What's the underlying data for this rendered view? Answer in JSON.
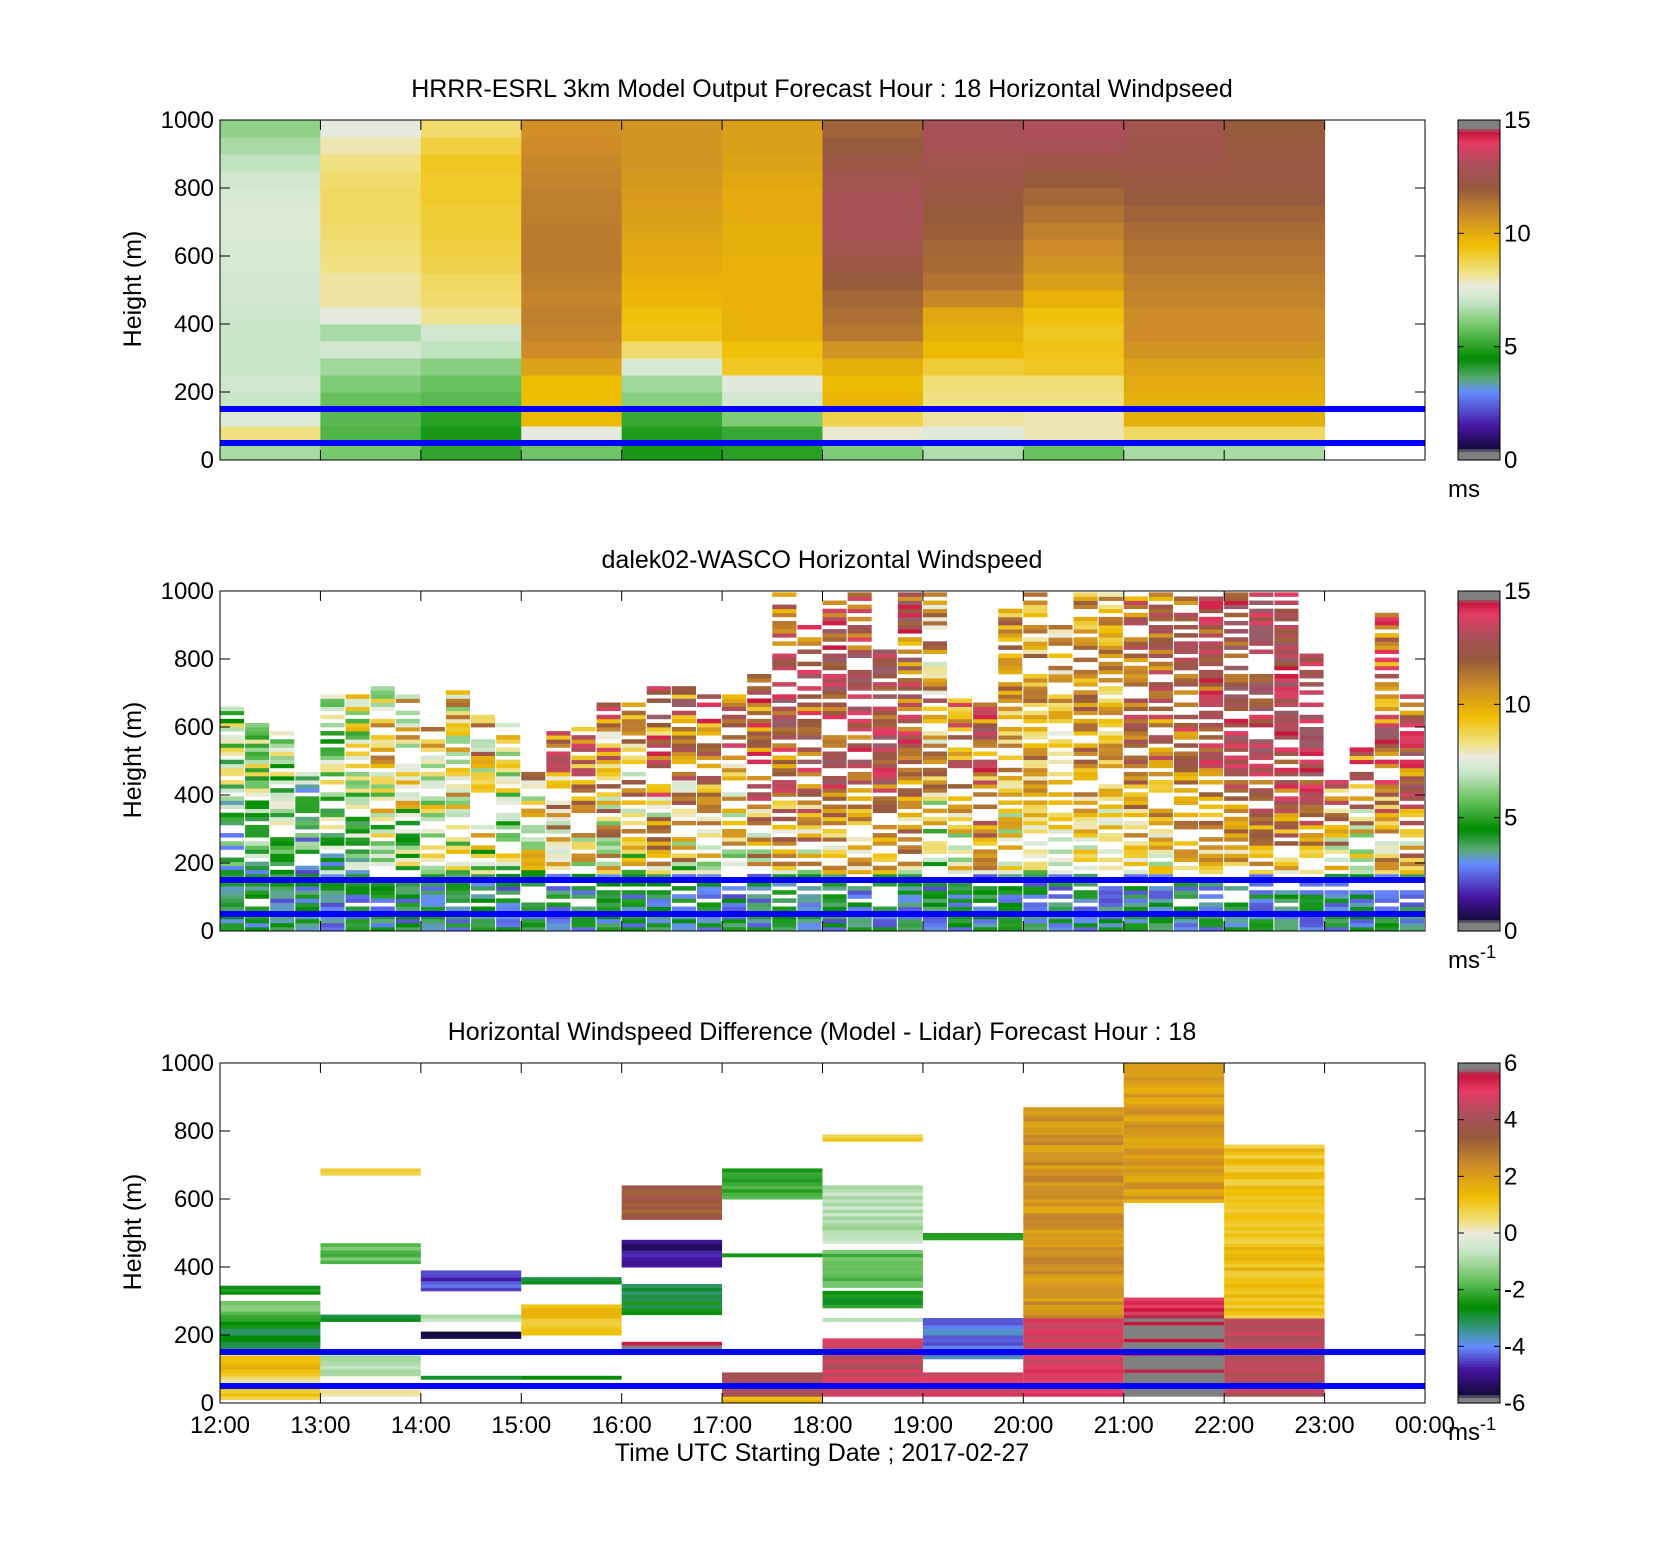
{
  "chart_data": [
    {
      "type": "heatmap",
      "title": "HRRR-ESRL 3km Model Output   Forecast Hour : 18 Horizontal Windpseed",
      "ylabel": "Height (m)",
      "yticks": [
        "0",
        "200",
        "400",
        "600",
        "800",
        "1000"
      ],
      "ylim": [
        0,
        1000
      ],
      "xlim": [
        12,
        24
      ],
      "colorbar": {
        "min": 0,
        "max": 15,
        "ticks": [
          "0",
          "5",
          "10",
          "15"
        ],
        "unit": "ms",
        "unit_sup": ""
      },
      "reference_lines_m": [
        50,
        150
      ],
      "reference_line_color": "#0000ff",
      "time_start_hours": [
        12,
        13,
        14,
        15,
        16,
        17,
        18,
        19,
        20,
        21,
        22
      ],
      "heights_m": [
        25,
        75,
        125,
        175,
        225,
        275,
        325,
        375,
        425,
        475,
        525,
        575,
        625,
        675,
        725,
        775,
        825,
        875,
        925,
        975
      ],
      "values": [
        [
          6.6,
          6.0,
          5.1,
          5.9,
          4.8,
          5.0,
          6.1,
          6.7,
          5.8,
          6.6,
          6.6
        ],
        [
          8.3,
          5.5,
          4.8,
          7.6,
          4.9,
          5.2,
          7.8,
          7.5,
          8.0,
          8.6,
          8.6
        ],
        [
          7.4,
          5.6,
          5.0,
          9.6,
          5.2,
          6.1,
          8.8,
          8.1,
          8.0,
          9.9,
          9.9
        ],
        [
          7.0,
          5.8,
          5.6,
          9.5,
          6.2,
          7.2,
          9.7,
          8.3,
          8.3,
          9.9,
          9.9
        ],
        [
          7.2,
          6.1,
          5.8,
          9.5,
          6.5,
          7.5,
          9.6,
          8.4,
          8.4,
          10.0,
          10.0
        ],
        [
          7.0,
          6.5,
          6.2,
          10.2,
          7.3,
          9.2,
          9.9,
          9.0,
          9.2,
          10.2,
          10.2
        ],
        [
          7.0,
          7.2,
          6.9,
          10.8,
          8.5,
          9.4,
          10.6,
          9.6,
          9.3,
          10.6,
          10.6
        ],
        [
          7.0,
          6.6,
          7.2,
          11.0,
          9.3,
          9.8,
          11.3,
          9.9,
          9.2,
          10.8,
          10.8
        ],
        [
          7.1,
          7.6,
          8.2,
          11.1,
          9.4,
          9.8,
          11.5,
          10.1,
          9.4,
          10.8,
          10.8
        ],
        [
          7.2,
          8.1,
          8.5,
          11.0,
          9.7,
          9.8,
          11.7,
          10.9,
          9.8,
          11.0,
          11.0
        ],
        [
          7.2,
          8.1,
          8.6,
          11.1,
          9.8,
          9.8,
          12.0,
          11.4,
          10.3,
          11.1,
          11.1
        ],
        [
          7.3,
          8.3,
          8.8,
          11.2,
          10.0,
          9.8,
          12.3,
          11.6,
          10.6,
          11.3,
          11.3
        ],
        [
          7.3,
          8.4,
          8.9,
          11.2,
          10.1,
          9.9,
          12.6,
          11.7,
          10.8,
          11.4,
          11.4
        ],
        [
          7.4,
          8.5,
          9.0,
          11.2,
          10.2,
          9.9,
          12.8,
          11.9,
          11.1,
          11.6,
          11.6
        ],
        [
          7.4,
          8.6,
          9.0,
          11.1,
          10.3,
          10.0,
          12.9,
          12.0,
          11.4,
          11.8,
          11.8
        ],
        [
          7.3,
          8.6,
          9.1,
          11.1,
          10.4,
          10.0,
          12.8,
          12.2,
          11.7,
          12.0,
          12.0
        ],
        [
          7.2,
          8.5,
          9.1,
          11.0,
          10.5,
          10.1,
          12.6,
          12.4,
          12.0,
          12.2,
          12.2
        ],
        [
          6.9,
          8.3,
          9.2,
          10.9,
          10.6,
          10.2,
          12.3,
          12.6,
          12.4,
          12.4,
          12.2
        ],
        [
          6.6,
          8.0,
          8.9,
          10.8,
          10.6,
          10.3,
          12.0,
          12.8,
          12.8,
          12.5,
          12.1
        ],
        [
          6.3,
          7.6,
          8.5,
          10.7,
          10.6,
          10.3,
          11.8,
          12.9,
          13.1,
          12.6,
          12.0
        ]
      ]
    },
    {
      "type": "heatmap",
      "title": "dalek02-WASCO  Horizontal Windspeed",
      "ylabel": "Height (m)",
      "yticks": [
        "0",
        "200",
        "400",
        "600",
        "800",
        "1000"
      ],
      "ylim": [
        0,
        1000
      ],
      "xlim": [
        12,
        24
      ],
      "colorbar": {
        "min": 0,
        "max": 15,
        "ticks": [
          "0",
          "5",
          "10",
          "15"
        ],
        "unit": "ms",
        "unit_sup": "-1"
      },
      "reference_lines_m": [
        50,
        150
      ],
      "reference_line_color": "#0000ff",
      "segments": [
        {
          "t": 12.0,
          "top": 660,
          "mean": 6.5,
          "spread": 2.5
        },
        {
          "t": 12.25,
          "top": 620,
          "mean": 7.0,
          "spread": 2.5
        },
        {
          "t": 12.5,
          "top": 600,
          "mean": 7.0,
          "spread": 2.5
        },
        {
          "t": 12.75,
          "top": 480,
          "mean": 6.0,
          "spread": 2.5
        },
        {
          "t": 13.0,
          "top": 700,
          "mean": 7.0,
          "spread": 2.5
        },
        {
          "t": 13.25,
          "top": 700,
          "mean": 7.5,
          "spread": 2.5
        },
        {
          "t": 13.5,
          "top": 720,
          "mean": 8.5,
          "spread": 3.0
        },
        {
          "t": 13.75,
          "top": 700,
          "mean": 8.5,
          "spread": 3.0
        },
        {
          "t": 14.0,
          "top": 600,
          "mean": 9.0,
          "spread": 3.0
        },
        {
          "t": 14.25,
          "top": 720,
          "mean": 9.0,
          "spread": 3.0
        },
        {
          "t": 14.5,
          "top": 660,
          "mean": 9.5,
          "spread": 3.0
        },
        {
          "t": 14.75,
          "top": 620,
          "mean": 9.0,
          "spread": 3.0
        },
        {
          "t": 15.0,
          "top": 500,
          "mean": 10.0,
          "spread": 3.0
        },
        {
          "t": 15.25,
          "top": 600,
          "mean": 11.0,
          "spread": 3.0
        },
        {
          "t": 15.5,
          "top": 620,
          "mean": 11.5,
          "spread": 3.0
        },
        {
          "t": 15.75,
          "top": 680,
          "mean": 11.0,
          "spread": 3.5
        },
        {
          "t": 16.0,
          "top": 700,
          "mean": 10.5,
          "spread": 3.5
        },
        {
          "t": 16.25,
          "top": 720,
          "mean": 11.5,
          "spread": 3.5
        },
        {
          "t": 16.5,
          "top": 720,
          "mean": 11.5,
          "spread": 3.5
        },
        {
          "t": 16.75,
          "top": 700,
          "mean": 12.0,
          "spread": 3.0
        },
        {
          "t": 17.0,
          "top": 700,
          "mean": 11.0,
          "spread": 3.0
        },
        {
          "t": 17.25,
          "top": 760,
          "mean": 12.0,
          "spread": 3.0
        },
        {
          "t": 17.5,
          "top": 1000,
          "mean": 12.5,
          "spread": 3.0
        },
        {
          "t": 17.75,
          "top": 900,
          "mean": 12.5,
          "spread": 3.0
        },
        {
          "t": 18.0,
          "top": 980,
          "mean": 13.0,
          "spread": 2.5
        },
        {
          "t": 18.25,
          "top": 1000,
          "mean": 13.0,
          "spread": 2.5
        },
        {
          "t": 18.5,
          "top": 830,
          "mean": 13.5,
          "spread": 2.5
        },
        {
          "t": 18.75,
          "top": 1000,
          "mean": 12.0,
          "spread": 3.0
        },
        {
          "t": 19.0,
          "top": 1000,
          "mean": 10.0,
          "spread": 3.0
        },
        {
          "t": 19.25,
          "top": 700,
          "mean": 11.0,
          "spread": 3.0
        },
        {
          "t": 19.5,
          "top": 680,
          "mean": 12.0,
          "spread": 3.0
        },
        {
          "t": 19.75,
          "top": 1000,
          "mean": 10.5,
          "spread": 2.5
        },
        {
          "t": 20.0,
          "top": 1000,
          "mean": 10.0,
          "spread": 2.0
        },
        {
          "t": 20.25,
          "top": 900,
          "mean": 9.5,
          "spread": 2.0
        },
        {
          "t": 20.5,
          "top": 1000,
          "mean": 10.5,
          "spread": 2.0
        },
        {
          "t": 20.75,
          "top": 1000,
          "mean": 10.0,
          "spread": 2.0
        },
        {
          "t": 21.0,
          "top": 1000,
          "mean": 11.5,
          "spread": 2.0
        },
        {
          "t": 21.25,
          "top": 1000,
          "mean": 11.5,
          "spread": 2.0
        },
        {
          "t": 21.5,
          "top": 1000,
          "mean": 12.0,
          "spread": 2.0
        },
        {
          "t": 21.75,
          "top": 1000,
          "mean": 12.5,
          "spread": 2.0
        },
        {
          "t": 22.0,
          "top": 1000,
          "mean": 13.0,
          "spread": 2.0
        },
        {
          "t": 22.25,
          "top": 1000,
          "mean": 13.5,
          "spread": 2.0
        },
        {
          "t": 22.5,
          "top": 1000,
          "mean": 13.5,
          "spread": 2.0
        },
        {
          "t": 22.75,
          "top": 820,
          "mean": 14.0,
          "spread": 2.0
        },
        {
          "t": 23.0,
          "top": 450,
          "mean": 12.0,
          "spread": 3.0
        },
        {
          "t": 23.25,
          "top": 540,
          "mean": 11.0,
          "spread": 3.5
        },
        {
          "t": 23.5,
          "top": 940,
          "mean": 12.0,
          "spread": 3.0
        },
        {
          "t": 23.75,
          "top": 700,
          "mean": 12.5,
          "spread": 3.0
        }
      ]
    },
    {
      "type": "heatmap",
      "title": "Horizontal Windspeed Difference (Model - Lidar) Forecast Hour : 18",
      "ylabel": "Height (m)",
      "xlabel": "Time UTC  Starting Date ; 2017-02-27",
      "yticks": [
        "0",
        "200",
        "400",
        "600",
        "800",
        "1000"
      ],
      "ylim": [
        0,
        1000
      ],
      "xlim": [
        12,
        24
      ],
      "xticks": [
        "12:00",
        "13:00",
        "14:00",
        "15:00",
        "16:00",
        "17:00",
        "18:00",
        "19:00",
        "20:00",
        "21:00",
        "22:00",
        "23:00",
        "00:00"
      ],
      "colorbar": {
        "min": -6,
        "max": 6,
        "ticks": [
          "-6",
          "-4",
          "-2",
          "0",
          "2",
          "4",
          "6"
        ],
        "unit": "ms",
        "unit_sup": "-1"
      },
      "reference_lines_m": [
        50,
        150
      ],
      "reference_line_color": "#0000ff",
      "bands": [
        {
          "t": 12,
          "bot": 10,
          "top": 60,
          "v": 1.0
        },
        {
          "t": 12,
          "bot": 60,
          "top": 80,
          "v": 0.5
        },
        {
          "t": 12,
          "bot": 80,
          "top": 140,
          "v": 1.3
        },
        {
          "t": 12,
          "bot": 150,
          "top": 220,
          "v": -2.8
        },
        {
          "t": 12,
          "bot": 220,
          "top": 260,
          "v": -2.2
        },
        {
          "t": 12,
          "bot": 260,
          "top": 300,
          "v": -1.6
        },
        {
          "t": 12,
          "bot": 320,
          "top": 345,
          "v": -2.4
        },
        {
          "t": 13,
          "bot": 20,
          "top": 40,
          "v": 0.4
        },
        {
          "t": 13,
          "bot": 80,
          "top": 140,
          "v": -0.8
        },
        {
          "t": 13,
          "bot": 240,
          "top": 260,
          "v": -2.6
        },
        {
          "t": 13,
          "bot": 410,
          "top": 470,
          "v": -1.8
        },
        {
          "t": 13,
          "bot": 670,
          "top": 690,
          "v": 0.8
        },
        {
          "t": 14,
          "bot": 70,
          "top": 80,
          "v": -2.8
        },
        {
          "t": 14,
          "bot": 190,
          "top": 210,
          "v": -5.5
        },
        {
          "t": 14,
          "bot": 240,
          "top": 260,
          "v": -0.6
        },
        {
          "t": 14,
          "bot": 330,
          "top": 390,
          "v": -4.5
        },
        {
          "t": 15,
          "bot": 70,
          "top": 80,
          "v": -2.6
        },
        {
          "t": 15,
          "bot": 200,
          "top": 290,
          "v": 1.2
        },
        {
          "t": 15,
          "bot": 350,
          "top": 370,
          "v": -2.8
        },
        {
          "t": 16,
          "bot": 160,
          "top": 180,
          "v": 5.8
        },
        {
          "t": 16,
          "bot": 260,
          "top": 300,
          "v": -2.8
        },
        {
          "t": 16,
          "bot": 300,
          "top": 350,
          "v": -3.2
        },
        {
          "t": 16,
          "bot": 400,
          "top": 480,
          "v": -5.0
        },
        {
          "t": 16,
          "bot": 540,
          "top": 640,
          "v": 3.5
        },
        {
          "t": 17,
          "bot": 0,
          "top": 20,
          "v": 1.5
        },
        {
          "t": 17,
          "bot": 20,
          "top": 90,
          "v": 3.8
        },
        {
          "t": 17,
          "bot": 430,
          "top": 440,
          "v": -2.6
        },
        {
          "t": 17,
          "bot": 600,
          "top": 690,
          "v": -2.0
        },
        {
          "t": 18,
          "bot": 20,
          "top": 190,
          "v": 4.6
        },
        {
          "t": 18,
          "bot": 240,
          "top": 250,
          "v": -1.0
        },
        {
          "t": 18,
          "bot": 280,
          "top": 330,
          "v": -2.4
        },
        {
          "t": 18,
          "bot": 340,
          "top": 450,
          "v": -1.8
        },
        {
          "t": 18,
          "bot": 470,
          "top": 640,
          "v": -0.8
        },
        {
          "t": 18,
          "bot": 770,
          "top": 790,
          "v": 0.8
        },
        {
          "t": 19,
          "bot": 20,
          "top": 90,
          "v": 4.8
        },
        {
          "t": 19,
          "bot": 130,
          "top": 250,
          "v": -4.0
        },
        {
          "t": 19,
          "bot": 480,
          "top": 500,
          "v": -2.6
        },
        {
          "t": 20,
          "bot": 20,
          "top": 250,
          "v": 4.8
        },
        {
          "t": 20,
          "bot": 250,
          "top": 870,
          "v": 2.2
        },
        {
          "t": 21,
          "bot": 20,
          "top": 250,
          "v": 6.0
        },
        {
          "t": 21,
          "bot": 250,
          "top": 310,
          "v": 5.2
        },
        {
          "t": 21,
          "bot": 590,
          "top": 1000,
          "v": 2.0
        },
        {
          "t": 22,
          "bot": 20,
          "top": 250,
          "v": 4.4
        },
        {
          "t": 22,
          "bot": 250,
          "top": 760,
          "v": 1.2
        }
      ]
    }
  ]
}
